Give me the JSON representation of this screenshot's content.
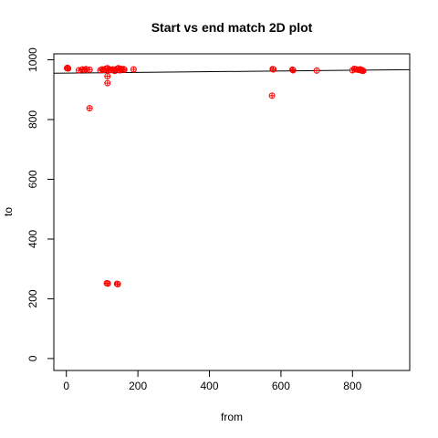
{
  "chart_data": {
    "type": "scatter",
    "title": "Start vs end match 2D plot",
    "xlabel": "from",
    "ylabel": "to",
    "xlim": [
      -35,
      960
    ],
    "ylim": [
      -40,
      1020
    ],
    "xticks": [
      0,
      200,
      400,
      600,
      800
    ],
    "yticks": [
      0,
      200,
      400,
      600,
      800,
      1000
    ],
    "xtick_labels": [
      "0",
      "200",
      "400",
      "600",
      "800"
    ],
    "ytick_labels": [
      "0",
      "200",
      "400",
      "600",
      "800",
      "1000"
    ],
    "point_color": "#ff0000",
    "marker": "circle-plus",
    "grid": false,
    "legend": "none",
    "fit_line": {
      "x": [
        -35,
        960
      ],
      "y": [
        955,
        967
      ]
    },
    "points": [
      {
        "x": 2,
        "y": 972
      },
      {
        "x": 3,
        "y": 973
      },
      {
        "x": 5,
        "y": 971
      },
      {
        "x": 35,
        "y": 965
      },
      {
        "x": 45,
        "y": 968
      },
      {
        "x": 50,
        "y": 966
      },
      {
        "x": 55,
        "y": 969
      },
      {
        "x": 65,
        "y": 967
      },
      {
        "x": 65,
        "y": 838
      },
      {
        "x": 95,
        "y": 965
      },
      {
        "x": 100,
        "y": 968
      },
      {
        "x": 105,
        "y": 966
      },
      {
        "x": 110,
        "y": 970
      },
      {
        "x": 115,
        "y": 972
      },
      {
        "x": 115,
        "y": 945
      },
      {
        "x": 115,
        "y": 922
      },
      {
        "x": 118,
        "y": 965
      },
      {
        "x": 120,
        "y": 968
      },
      {
        "x": 125,
        "y": 966
      },
      {
        "x": 130,
        "y": 968
      },
      {
        "x": 135,
        "y": 963
      },
      {
        "x": 140,
        "y": 969
      },
      {
        "x": 145,
        "y": 972
      },
      {
        "x": 148,
        "y": 966
      },
      {
        "x": 150,
        "y": 965
      },
      {
        "x": 152,
        "y": 970
      },
      {
        "x": 155,
        "y": 968
      },
      {
        "x": 160,
        "y": 969
      },
      {
        "x": 162,
        "y": 967
      },
      {
        "x": 188,
        "y": 968
      },
      {
        "x": 113,
        "y": 252
      },
      {
        "x": 116,
        "y": 251
      },
      {
        "x": 142,
        "y": 250
      },
      {
        "x": 144,
        "y": 249
      },
      {
        "x": 575,
        "y": 880
      },
      {
        "x": 577,
        "y": 969
      },
      {
        "x": 579,
        "y": 968
      },
      {
        "x": 632,
        "y": 967
      },
      {
        "x": 634,
        "y": 965
      },
      {
        "x": 700,
        "y": 964
      },
      {
        "x": 800,
        "y": 965
      },
      {
        "x": 805,
        "y": 970
      },
      {
        "x": 810,
        "y": 968
      },
      {
        "x": 815,
        "y": 967
      },
      {
        "x": 820,
        "y": 966
      },
      {
        "x": 822,
        "y": 968
      },
      {
        "x": 825,
        "y": 964
      },
      {
        "x": 828,
        "y": 965
      },
      {
        "x": 830,
        "y": 963
      }
    ]
  }
}
